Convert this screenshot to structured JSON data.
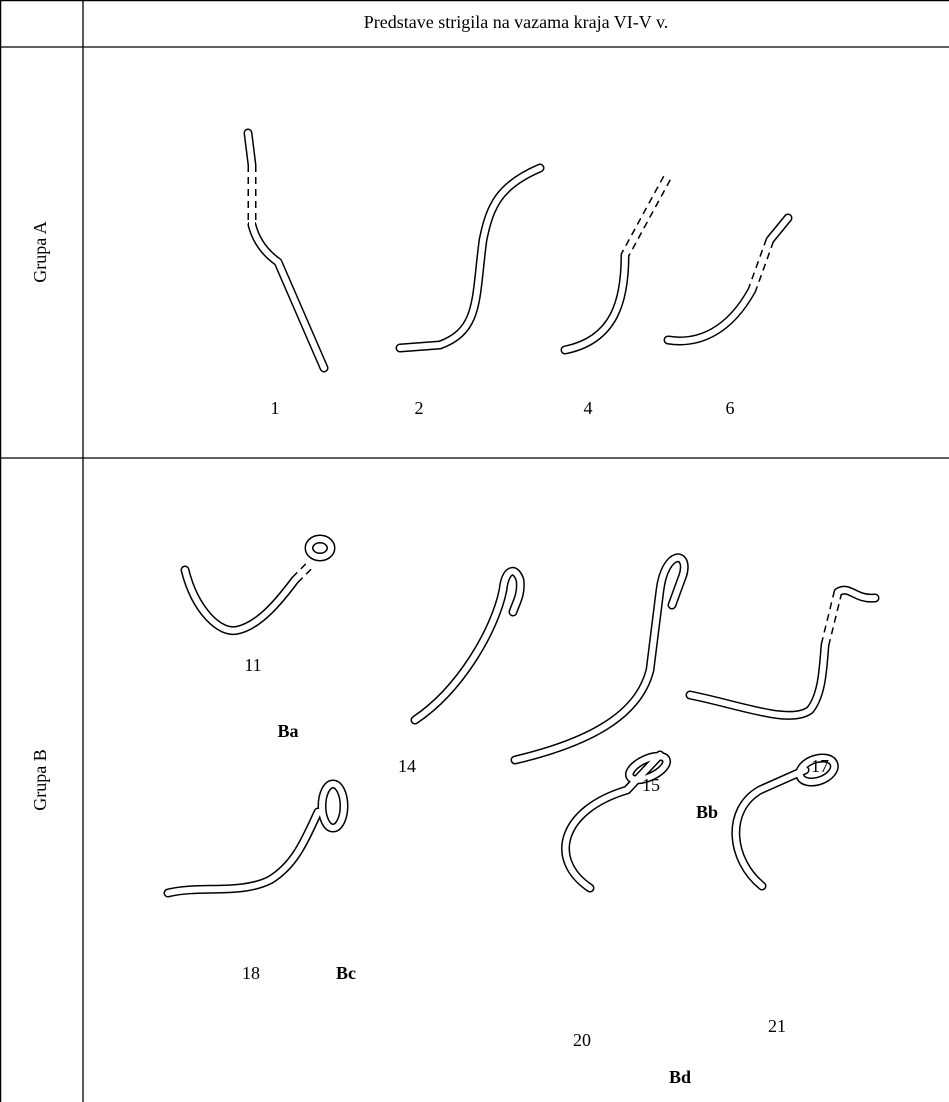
{
  "table": {
    "header": {
      "title": "Predstave strigila na vazama kraja VI-V v."
    },
    "rows": [
      {
        "label": "Grupa A",
        "figures": [
          "1",
          "2",
          "4",
          "6"
        ]
      },
      {
        "label": "Grupa B",
        "figures": [
          "11",
          "14",
          "15",
          "17",
          "18",
          "20",
          "21"
        ],
        "subgroups": [
          "Ba",
          "Bb",
          "Bc",
          "Bd"
        ]
      }
    ]
  }
}
